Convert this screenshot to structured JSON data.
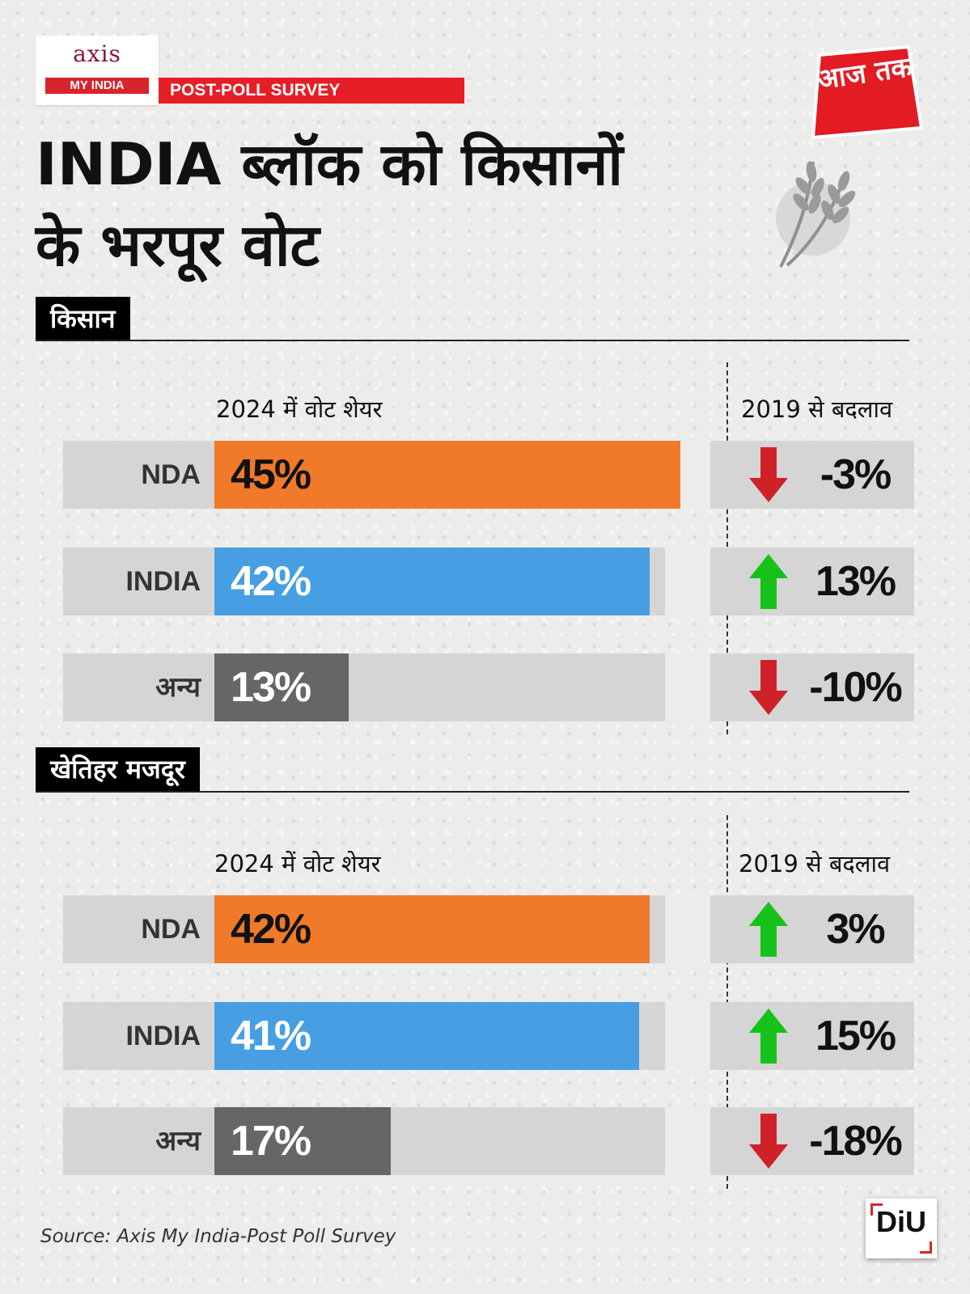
{
  "header": {
    "logo_left": {
      "line1": "axis",
      "line2": "MY INDIA"
    },
    "survey_tag": "POST-POLL SURVEY",
    "logo_right": {
      "text": "आज तक"
    },
    "headline": {
      "line1": "INDIA ब्लॉक को किसानों",
      "line2": "के भरपूर वोट"
    }
  },
  "colors": {
    "NDA": "#f07a2a",
    "INDIA": "#479ee2",
    "other": "#666666",
    "up": "#16c21a",
    "down": "#cf2128"
  },
  "chart_data": [
    {
      "type": "bar",
      "section_label": "किसान",
      "value_header": "2024 में वोट शेयर",
      "change_header": "2019 से बदलाव",
      "categories": [
        "NDA",
        "INDIA",
        "अन्य"
      ],
      "values": [
        45,
        42,
        13
      ],
      "value_labels": [
        "45%",
        "42%",
        "13%"
      ],
      "changes": [
        -3,
        13,
        -10
      ],
      "change_labels": [
        "-3%",
        "13%",
        "-10%"
      ],
      "ylim": [
        0,
        100
      ]
    },
    {
      "type": "bar",
      "section_label": "खेतिहर मजदूर",
      "value_header": "2024 में वोट शेयर",
      "change_header": "2019 से बदलाव",
      "categories": [
        "NDA",
        "INDIA",
        "अन्य"
      ],
      "values": [
        42,
        41,
        17
      ],
      "value_labels": [
        "42%",
        "41%",
        "17%"
      ],
      "changes": [
        3,
        15,
        -18
      ],
      "change_labels": [
        "3%",
        "15%",
        "-18%"
      ],
      "ylim": [
        0,
        100
      ]
    }
  ],
  "footer": {
    "source": "Source:  Axis My India-Post Poll Survey",
    "diu_logo": "DiU"
  }
}
